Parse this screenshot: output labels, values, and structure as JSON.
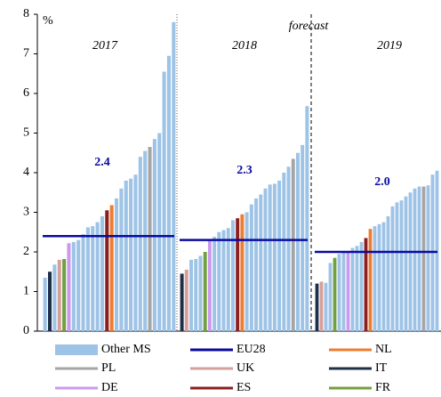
{
  "chart_data": {
    "type": "bar",
    "y_unit": "%",
    "annotation": "forecast",
    "ylim": [
      0,
      8
    ],
    "yticks": [
      0,
      1,
      2,
      3,
      4,
      5,
      6,
      7,
      8
    ],
    "legend": [
      {
        "name": "Other MS",
        "color": "#9dc3e6"
      },
      {
        "name": "EU28",
        "color": "#0a0aa0"
      },
      {
        "name": "NL",
        "color": "#ed7d31"
      },
      {
        "name": "PL",
        "color": "#a5a5a5"
      },
      {
        "name": "UK",
        "color": "#d6a09a"
      },
      {
        "name": "IT",
        "color": "#1f2f4a"
      },
      {
        "name": "DE",
        "color": "#cc99ee"
      },
      {
        "name": "ES",
        "color": "#8b1e1e"
      },
      {
        "name": "FR",
        "color": "#70a040"
      }
    ],
    "panels": [
      {
        "label": "2017",
        "values": [
          1.35,
          1.5,
          1.68,
          1.8,
          1.82,
          2.22,
          2.25,
          2.3,
          2.45,
          2.62,
          2.65,
          2.75,
          2.9,
          3.05,
          3.18,
          3.35,
          3.6,
          3.8,
          3.85,
          3.95,
          4.4,
          4.55,
          4.65,
          4.85,
          5.0,
          6.55,
          6.95,
          7.8
        ],
        "colors": [
          "#9dc3e6",
          "#1f2f4a",
          "#9dc3e6",
          "#d6a09a",
          "#70a040",
          "#cc99ee",
          "#9dc3e6",
          "#9dc3e6",
          "#9dc3e6",
          "#9dc3e6",
          "#9dc3e6",
          "#9dc3e6",
          "#9dc3e6",
          "#8b1e1e",
          "#ed7d31",
          "#9dc3e6",
          "#9dc3e6",
          "#9dc3e6",
          "#9dc3e6",
          "#9dc3e6",
          "#9dc3e6",
          "#9dc3e6",
          "#a5a5a5",
          "#9dc3e6",
          "#9dc3e6",
          "#9dc3e6",
          "#9dc3e6",
          "#9dc3e6"
        ],
        "eu28": 2.4,
        "eu28_label": "2.4"
      },
      {
        "label": "2018",
        "values": [
          1.45,
          1.55,
          1.8,
          1.82,
          1.9,
          2.0,
          2.3,
          2.38,
          2.5,
          2.55,
          2.6,
          2.8,
          2.85,
          2.95,
          3.0,
          3.2,
          3.35,
          3.45,
          3.6,
          3.7,
          3.72,
          3.8,
          4.0,
          4.15,
          4.35,
          4.5,
          4.7,
          5.68
        ],
        "colors": [
          "#1f2f4a",
          "#d6a09a",
          "#9dc3e6",
          "#9dc3e6",
          "#9dc3e6",
          "#70a040",
          "#cc99ee",
          "#9dc3e6",
          "#9dc3e6",
          "#9dc3e6",
          "#9dc3e6",
          "#9dc3e6",
          "#8b1e1e",
          "#ed7d31",
          "#9dc3e6",
          "#9dc3e6",
          "#9dc3e6",
          "#9dc3e6",
          "#9dc3e6",
          "#9dc3e6",
          "#9dc3e6",
          "#9dc3e6",
          "#9dc3e6",
          "#9dc3e6",
          "#a5a5a5",
          "#9dc3e6",
          "#9dc3e6",
          "#9dc3e6"
        ],
        "eu28": 2.3,
        "eu28_label": "2.3"
      },
      {
        "label": "2019",
        "values": [
          1.2,
          1.25,
          1.22,
          1.72,
          1.85,
          1.95,
          2.0,
          2.0,
          2.1,
          2.15,
          2.25,
          2.35,
          2.58,
          2.65,
          2.7,
          2.75,
          2.9,
          3.15,
          3.25,
          3.3,
          3.4,
          3.5,
          3.6,
          3.65,
          3.65,
          3.68,
          3.95,
          4.05
        ],
        "colors": [
          "#1f2f4a",
          "#d6a09a",
          "#9dc3e6",
          "#9dc3e6",
          "#70a040",
          "#9dc3e6",
          "#9dc3e6",
          "#cc99ee",
          "#9dc3e6",
          "#9dc3e6",
          "#9dc3e6",
          "#8b1e1e",
          "#ed7d31",
          "#9dc3e6",
          "#9dc3e6",
          "#9dc3e6",
          "#9dc3e6",
          "#9dc3e6",
          "#9dc3e6",
          "#9dc3e6",
          "#9dc3e6",
          "#9dc3e6",
          "#9dc3e6",
          "#9dc3e6",
          "#a5a5a5",
          "#9dc3e6",
          "#9dc3e6",
          "#9dc3e6"
        ],
        "eu28": 2.0,
        "eu28_label": "2.0"
      }
    ]
  }
}
